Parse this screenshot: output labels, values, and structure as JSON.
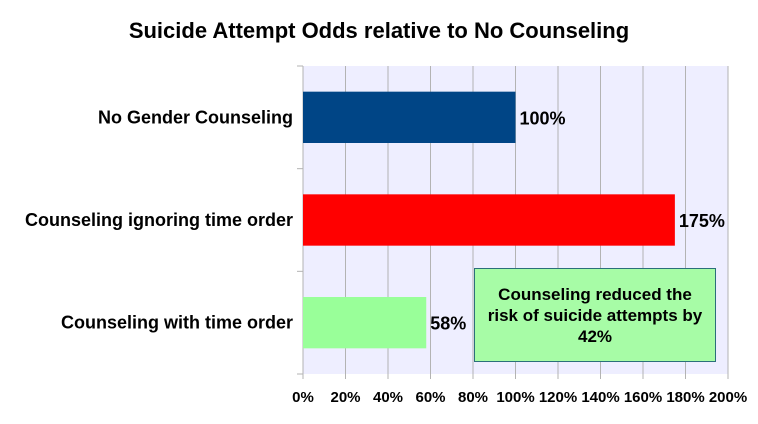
{
  "chart_data": {
    "type": "bar",
    "orientation": "horizontal",
    "title": "Suicide Attempt Odds relative to No Counseling",
    "categories": [
      "No Gender Counseling",
      "Counseling ignoring time order",
      "Counseling with time order"
    ],
    "values": [
      100,
      175,
      58
    ],
    "value_labels": [
      "100%",
      "175%",
      "58%"
    ],
    "colors": [
      "#004586",
      "#ff0000",
      "#99ff99"
    ],
    "xlim": [
      0,
      200
    ],
    "xticks": [
      0,
      20,
      40,
      60,
      80,
      100,
      120,
      140,
      160,
      180,
      200
    ],
    "xtick_labels": [
      "0%",
      "20%",
      "40%",
      "60%",
      "80%",
      "100%",
      "120%",
      "140%",
      "160%",
      "180%",
      "200%"
    ],
    "grid": true,
    "plot_background": "#eeeeff",
    "annotation": "Counseling reduced the risk of suicide attempts by 42%",
    "annotation_background": "#a7fca6"
  }
}
